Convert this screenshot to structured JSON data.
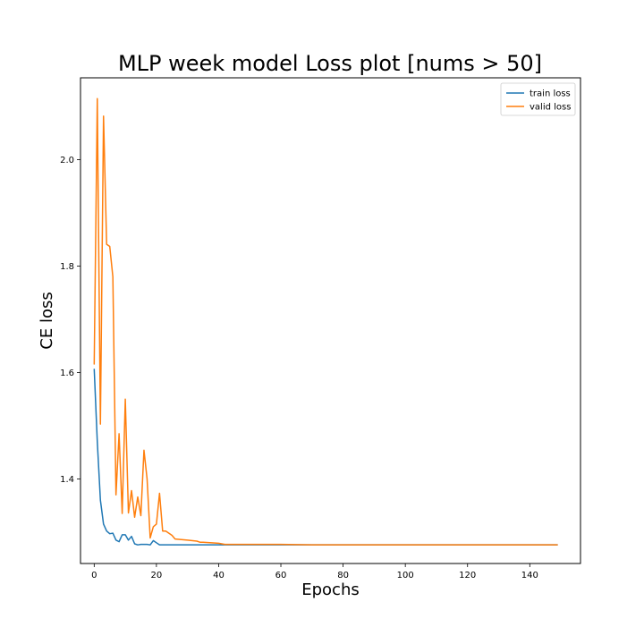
{
  "chart_data": {
    "type": "line",
    "title": "MLP week model Loss plot [nums > 50]",
    "xlabel": "Epochs",
    "ylabel": "CE loss",
    "xlim": [
      -4.4,
      156.3
    ],
    "ylim": [
      1.241,
      2.154
    ],
    "xticks": [
      0,
      20,
      40,
      60,
      80,
      100,
      120,
      140
    ],
    "yticks": [
      1.4,
      1.6,
      1.8,
      2.0
    ],
    "grid": false,
    "legend_position": "top-right",
    "series": [
      {
        "name": "train loss",
        "color": "#1f77b4",
        "x": [
          0,
          1,
          2,
          3,
          4,
          5,
          6,
          7,
          8,
          9,
          10,
          11,
          12,
          13,
          14,
          15,
          16,
          17,
          18,
          19,
          20,
          21,
          22,
          23,
          24,
          25,
          26,
          30,
          35,
          40,
          50,
          60,
          70,
          80,
          90,
          100,
          110,
          120,
          130,
          140,
          149
        ],
        "y": [
          1.607,
          1.47,
          1.36,
          1.315,
          1.302,
          1.297,
          1.298,
          1.285,
          1.282,
          1.295,
          1.295,
          1.285,
          1.292,
          1.278,
          1.276,
          1.277,
          1.277,
          1.277,
          1.276,
          1.284,
          1.28,
          1.276,
          1.276,
          1.276,
          1.276,
          1.276,
          1.276,
          1.276,
          1.276,
          1.276,
          1.276,
          1.276,
          1.276,
          1.276,
          1.276,
          1.276,
          1.276,
          1.276,
          1.276,
          1.276,
          1.276
        ]
      },
      {
        "name": "valid loss",
        "color": "#ff7f0e",
        "x": [
          0,
          1,
          2,
          3,
          4,
          5,
          6,
          7,
          8,
          9,
          10,
          11,
          12,
          13,
          14,
          15,
          16,
          17,
          18,
          19,
          20,
          21,
          22,
          23,
          24,
          25,
          26,
          30,
          33,
          34,
          35,
          40,
          42,
          50,
          60,
          70,
          80,
          90,
          100,
          110,
          120,
          130,
          140,
          149
        ],
        "y": [
          1.615,
          2.115,
          1.503,
          2.082,
          1.841,
          1.837,
          1.78,
          1.37,
          1.485,
          1.335,
          1.55,
          1.336,
          1.378,
          1.328,
          1.366,
          1.331,
          1.454,
          1.4,
          1.289,
          1.31,
          1.315,
          1.373,
          1.302,
          1.302,
          1.298,
          1.294,
          1.287,
          1.285,
          1.283,
          1.281,
          1.281,
          1.279,
          1.277,
          1.277,
          1.277,
          1.276,
          1.276,
          1.276,
          1.276,
          1.276,
          1.276,
          1.276,
          1.276,
          1.276
        ]
      }
    ]
  }
}
